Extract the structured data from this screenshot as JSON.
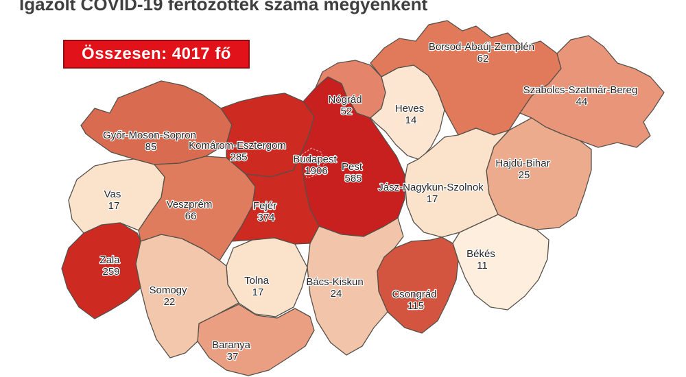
{
  "title": "Igazolt COVID-19 fertőzöttek száma megyénként",
  "total": {
    "label": "Összesen: 4017 fő"
  },
  "colors": {
    "box_bg": "#e1121a",
    "box_border": "#8e0e12",
    "box_text": "#ffffff",
    "map_border": "#555049",
    "label_text": "#262626"
  },
  "map": {
    "counties": [
      {
        "id": "gyor-moson-sopron",
        "name": "Győr-Moson-Sopron",
        "value": "85",
        "color": "#d96b50"
      },
      {
        "id": "komarom-esztergom",
        "name": "Komárom-Esztergom",
        "value": "285",
        "color": "#cd2a22"
      },
      {
        "id": "pest",
        "name": "Pest",
        "value": "585",
        "color": "#c81f1f"
      },
      {
        "id": "budapest",
        "name": "Budapest",
        "value": "1906",
        "color": "#c81f1f"
      },
      {
        "id": "nograd",
        "name": "Nógrád",
        "value": "52",
        "color": "#e4846b"
      },
      {
        "id": "heves",
        "name": "Heves",
        "value": "14",
        "color": "#fce5d1"
      },
      {
        "id": "borsod-abauj-zemplen",
        "name": "Borsod-Abaúj-Zemplén",
        "value": "62",
        "color": "#e17a5b"
      },
      {
        "id": "szabolcs-szatmar-bereg",
        "name": "Szabolcs-Szatmár-Bereg",
        "value": "44",
        "color": "#e9957a"
      },
      {
        "id": "hajdu-bihar",
        "name": "Hajdú-Bihar",
        "value": "25",
        "color": "#edab8e"
      },
      {
        "id": "jasz-nagykun-szolnok",
        "name": "Jász-Nagykun-Szolnok",
        "value": "17",
        "color": "#fbe2cb"
      },
      {
        "id": "bekes",
        "name": "Békés",
        "value": "11",
        "color": "#fdeedd"
      },
      {
        "id": "csongrad",
        "name": "Csongrád",
        "value": "115",
        "color": "#d4553f"
      },
      {
        "id": "bacs-kiskun",
        "name": "Bács-Kiskun",
        "value": "24",
        "color": "#f2c4a9"
      },
      {
        "id": "tolna",
        "name": "Tolna",
        "value": "17",
        "color": "#fbe2cb"
      },
      {
        "id": "baranya",
        "name": "Baranya",
        "value": "37",
        "color": "#eb9f82"
      },
      {
        "id": "somogy",
        "name": "Somogy",
        "value": "22",
        "color": "#f3c7ac"
      },
      {
        "id": "zala",
        "name": "Zala",
        "value": "259",
        "color": "#cd2a22"
      },
      {
        "id": "vas",
        "name": "Vas",
        "value": "17",
        "color": "#fbe2cb"
      },
      {
        "id": "veszprem",
        "name": "Veszprém",
        "value": "66",
        "color": "#df7c5e"
      },
      {
        "id": "fejer",
        "name": "Fejér",
        "value": "374",
        "color": "#cd2a22"
      }
    ]
  }
}
